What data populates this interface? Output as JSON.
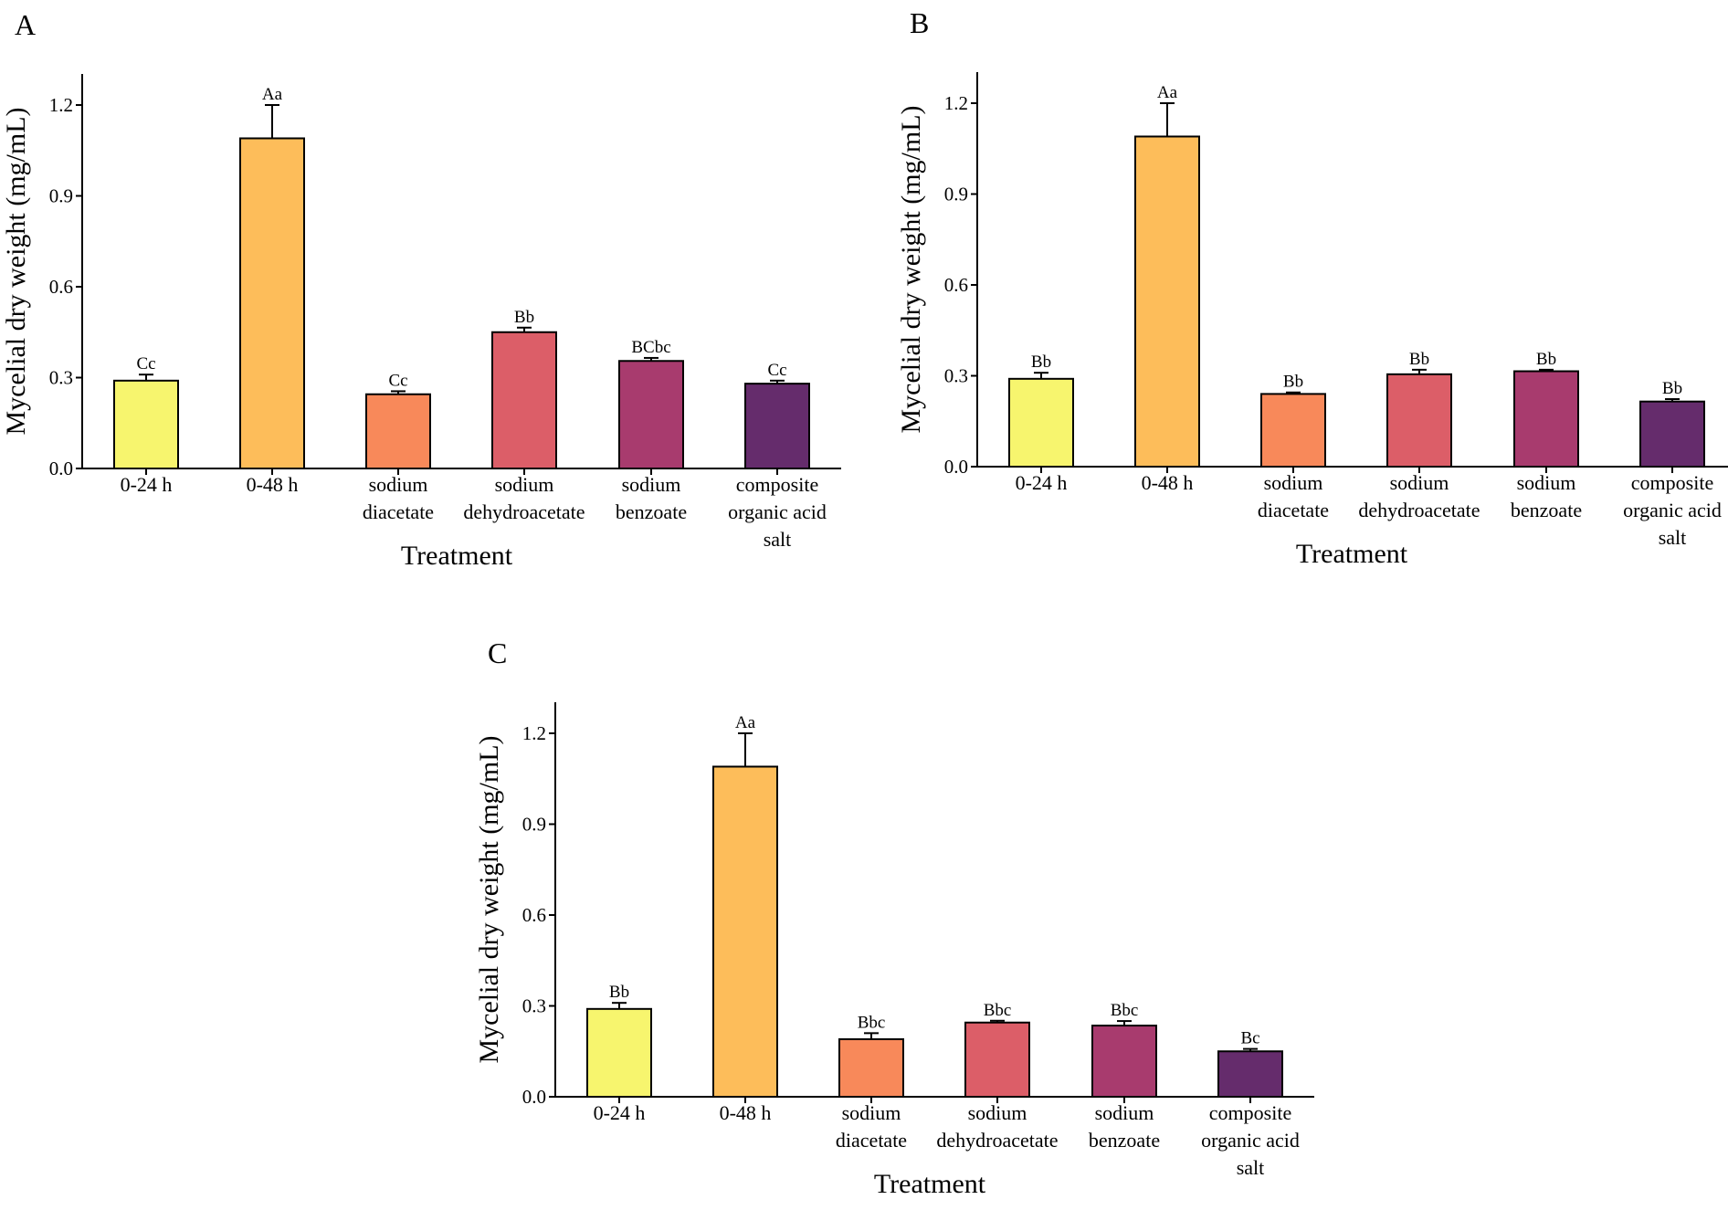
{
  "chart_data": [
    {
      "type": "bar",
      "panel": "A",
      "xlabel": "Treatment",
      "ylabel": "Mycelial dry weight (mg/mL)",
      "ylim": [
        0,
        1.3
      ],
      "yticks": [
        "0.0",
        "0.3",
        "0.6",
        "0.9",
        "1.2"
      ],
      "categories": [
        [
          "0-24 h"
        ],
        [
          "0-48 h"
        ],
        [
          "sodium",
          "diacetate"
        ],
        [
          "sodium",
          "dehydroacetate"
        ],
        [
          "sodium",
          "benzoate"
        ],
        [
          "composite",
          "organic acid",
          "salt"
        ]
      ],
      "values": [
        0.29,
        1.09,
        0.245,
        0.45,
        0.355,
        0.28
      ],
      "errors": [
        0.02,
        0.11,
        0.01,
        0.015,
        0.01,
        0.01
      ],
      "letters": [
        "Cc",
        "Aa",
        "Cc",
        "Bb",
        "BCbc",
        "Cc"
      ]
    },
    {
      "type": "bar",
      "panel": "B",
      "xlabel": "Treatment",
      "ylabel": "Mycelial dry weight (mg/mL)",
      "ylim": [
        0,
        1.3
      ],
      "yticks": [
        "0.0",
        "0.3",
        "0.6",
        "0.9",
        "1.2"
      ],
      "categories": [
        [
          "0-24 h"
        ],
        [
          "0-48 h"
        ],
        [
          "sodium",
          "diacetate"
        ],
        [
          "sodium",
          "dehydroacetate"
        ],
        [
          "sodium",
          "benzoate"
        ],
        [
          "composite",
          "organic acid",
          "salt"
        ]
      ],
      "values": [
        0.29,
        1.09,
        0.24,
        0.305,
        0.315,
        0.215
      ],
      "errors": [
        0.02,
        0.11,
        0.005,
        0.015,
        0.005,
        0.008
      ],
      "letters": [
        "Bb",
        "Aa",
        "Bb",
        "Bb",
        "Bb",
        "Bb"
      ]
    },
    {
      "type": "bar",
      "panel": "C",
      "xlabel": "Treatment",
      "ylabel": "Mycelial dry weight (mg/mL)",
      "ylim": [
        0,
        1.3
      ],
      "yticks": [
        "0.0",
        "0.3",
        "0.6",
        "0.9",
        "1.2"
      ],
      "categories": [
        [
          "0-24 h"
        ],
        [
          "0-48 h"
        ],
        [
          "sodium",
          "diacetate"
        ],
        [
          "sodium",
          "dehydroacetate"
        ],
        [
          "sodium",
          "benzoate"
        ],
        [
          "composite",
          "organic acid",
          "salt"
        ]
      ],
      "values": [
        0.29,
        1.09,
        0.19,
        0.245,
        0.235,
        0.15
      ],
      "errors": [
        0.02,
        0.11,
        0.02,
        0.006,
        0.015,
        0.008
      ],
      "letters": [
        "Bb",
        "Aa",
        "Bbc",
        "Bbc",
        "Bbc",
        "Bc"
      ]
    }
  ],
  "colors": [
    "#f7f56e",
    "#fdbd5a",
    "#f8895a",
    "#dc5e68",
    "#a83b6e",
    "#652c6c"
  ]
}
